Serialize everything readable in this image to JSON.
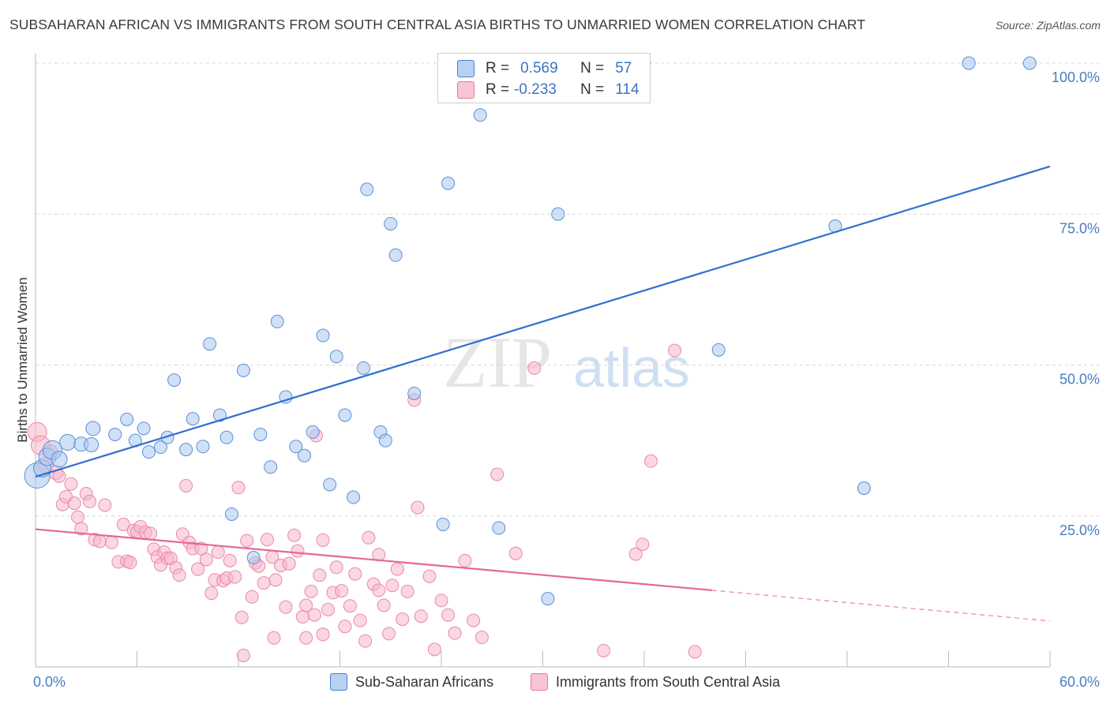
{
  "title": "SUBSAHARAN AFRICAN VS IMMIGRANTS FROM SOUTH CENTRAL ASIA BIRTHS TO UNMARRIED WOMEN CORRELATION CHART",
  "source": "Source: ZipAtlas.com",
  "watermark": {
    "zip": "ZIP",
    "atlas": "atlas"
  },
  "legend": {
    "r_label": "R =",
    "n_label": "N =",
    "series": [
      {
        "r": "0.569",
        "n": "57"
      },
      {
        "r": "-0.233",
        "n": "114"
      }
    ]
  },
  "bottom_legend": [
    "Sub-Saharan Africans",
    "Immigrants from South Central Asia"
  ],
  "colors": {
    "blue_fill": "#a9c8ef",
    "blue_stroke": "#5b8fd6",
    "blue_line": "#2f6fd0",
    "pink_fill": "#f7b6cb",
    "pink_stroke": "#e889a8",
    "pink_line": "#e4679a",
    "tick_text": "#4a7cc7",
    "grid": "#d8d8d8"
  },
  "chart_data": {
    "type": "scatter",
    "xlabel": "",
    "ylabel": "Births to Unmarried Women",
    "xlim": [
      0,
      60
    ],
    "ylim": [
      0,
      100
    ],
    "x_tick_labels": [
      "0.0%",
      "60.0%"
    ],
    "y_tick_labels": [
      "25.0%",
      "50.0%",
      "75.0%",
      "100.0%"
    ],
    "y_ticks": [
      25,
      50,
      75,
      100
    ],
    "grid": "horizontal dashed",
    "series": [
      {
        "name": "Sub-Saharan Africans",
        "trend": {
          "x": [
            0,
            60
          ],
          "y": [
            31.5,
            82.9
          ]
        },
        "points": [
          [
            0.1,
            31.7,
            16
          ],
          [
            0.4,
            32.9,
            11
          ],
          [
            0.7,
            34.8,
            11
          ],
          [
            1.0,
            35.9,
            12
          ],
          [
            1.4,
            34.4,
            10
          ],
          [
            1.9,
            37.2,
            10
          ],
          [
            2.7,
            36.9,
            9
          ],
          [
            3.3,
            36.8,
            9
          ],
          [
            3.4,
            39.5,
            9
          ],
          [
            4.7,
            38.5,
            8
          ],
          [
            5.4,
            41.0,
            8
          ],
          [
            5.9,
            37.5,
            8
          ],
          [
            6.4,
            39.5,
            8
          ],
          [
            6.7,
            35.6,
            8
          ],
          [
            7.4,
            36.4,
            8
          ],
          [
            7.8,
            38.0,
            8
          ],
          [
            8.2,
            47.5,
            8
          ],
          [
            8.9,
            36.0,
            8
          ],
          [
            9.3,
            41.1,
            8
          ],
          [
            9.9,
            36.5,
            8
          ],
          [
            10.3,
            53.5,
            8
          ],
          [
            10.9,
            41.7,
            8
          ],
          [
            11.3,
            38.0,
            8
          ],
          [
            11.6,
            25.3,
            8
          ],
          [
            12.3,
            49.1,
            8
          ],
          [
            12.9,
            18.1,
            8
          ],
          [
            13.3,
            38.5,
            8
          ],
          [
            13.9,
            33.1,
            8
          ],
          [
            14.3,
            57.2,
            8
          ],
          [
            14.8,
            44.7,
            8
          ],
          [
            15.4,
            36.5,
            8
          ],
          [
            15.9,
            35.0,
            8
          ],
          [
            16.4,
            38.9,
            8
          ],
          [
            17.0,
            54.9,
            8
          ],
          [
            17.4,
            30.2,
            8
          ],
          [
            17.8,
            51.4,
            8
          ],
          [
            18.3,
            41.7,
            8
          ],
          [
            18.8,
            28.1,
            8
          ],
          [
            19.4,
            49.5,
            8
          ],
          [
            19.6,
            79.1,
            8
          ],
          [
            20.4,
            38.9,
            8
          ],
          [
            20.7,
            37.5,
            8
          ],
          [
            21.0,
            73.4,
            8
          ],
          [
            21.3,
            68.2,
            8
          ],
          [
            22.4,
            45.3,
            8
          ],
          [
            24.1,
            23.6,
            8
          ],
          [
            24.4,
            80.1,
            8
          ],
          [
            26.3,
            91.4,
            8
          ],
          [
            27.4,
            23.0,
            8
          ],
          [
            30.3,
            11.3,
            8
          ],
          [
            30.9,
            75.0,
            8
          ],
          [
            36.0,
            100.0,
            8
          ],
          [
            40.4,
            52.5,
            8
          ],
          [
            47.3,
            73.0,
            8
          ],
          [
            49.0,
            29.6,
            8
          ],
          [
            55.2,
            100.0,
            8
          ],
          [
            58.8,
            100.0,
            8
          ]
        ]
      },
      {
        "name": "Immigrants from South Central Asia",
        "trend": {
          "x": [
            0,
            40
          ],
          "y": [
            22.8,
            12.7
          ]
        },
        "trend_dashed": {
          "x": [
            40,
            60
          ],
          "y": [
            12.7,
            7.6
          ]
        },
        "points": [
          [
            0.1,
            38.9,
            12
          ],
          [
            0.3,
            36.7,
            12
          ],
          [
            0.6,
            33.5,
            10
          ],
          [
            0.9,
            35.6,
            9
          ],
          [
            1.2,
            32.2,
            9
          ],
          [
            1.4,
            31.6,
            8
          ],
          [
            1.6,
            26.9,
            8
          ],
          [
            1.8,
            28.2,
            8
          ],
          [
            2.1,
            30.3,
            8
          ],
          [
            2.3,
            27.1,
            8
          ],
          [
            2.5,
            24.8,
            8
          ],
          [
            2.7,
            22.9,
            8
          ],
          [
            3.0,
            28.7,
            8
          ],
          [
            3.2,
            27.4,
            8
          ],
          [
            3.5,
            21.1,
            8
          ],
          [
            3.8,
            20.8,
            8
          ],
          [
            4.1,
            26.8,
            8
          ],
          [
            4.5,
            20.6,
            8
          ],
          [
            4.9,
            17.4,
            8
          ],
          [
            5.2,
            23.6,
            8
          ],
          [
            5.4,
            17.5,
            8
          ],
          [
            5.6,
            17.3,
            8
          ],
          [
            5.8,
            22.6,
            8
          ],
          [
            6.0,
            22.4,
            8
          ],
          [
            6.2,
            23.2,
            8
          ],
          [
            6.5,
            22.3,
            8
          ],
          [
            6.8,
            22.1,
            8
          ],
          [
            7.0,
            19.5,
            8
          ],
          [
            7.2,
            18.2,
            8
          ],
          [
            7.4,
            16.9,
            8
          ],
          [
            7.6,
            19.0,
            8
          ],
          [
            7.8,
            18.0,
            8
          ],
          [
            8.0,
            18.0,
            8
          ],
          [
            8.3,
            16.4,
            8
          ],
          [
            8.5,
            15.2,
            8
          ],
          [
            8.7,
            22.0,
            8
          ],
          [
            8.9,
            30.0,
            8
          ],
          [
            9.1,
            20.6,
            8
          ],
          [
            9.3,
            19.6,
            8
          ],
          [
            9.6,
            16.2,
            8
          ],
          [
            9.8,
            19.6,
            8
          ],
          [
            10.1,
            17.8,
            8
          ],
          [
            10.4,
            12.2,
            8
          ],
          [
            10.6,
            14.4,
            8
          ],
          [
            10.8,
            19.0,
            8
          ],
          [
            11.1,
            14.3,
            8
          ],
          [
            11.3,
            14.7,
            8
          ],
          [
            11.5,
            17.6,
            8
          ],
          [
            11.8,
            14.9,
            8
          ],
          [
            12.0,
            29.7,
            8
          ],
          [
            12.2,
            8.2,
            8
          ],
          [
            12.5,
            20.9,
            8
          ],
          [
            12.8,
            11.6,
            8
          ],
          [
            13.0,
            17.2,
            8
          ],
          [
            13.2,
            16.7,
            8
          ],
          [
            13.5,
            13.9,
            8
          ],
          [
            13.7,
            21.1,
            8
          ],
          [
            14.0,
            18.2,
            8
          ],
          [
            14.2,
            14.4,
            8
          ],
          [
            14.5,
            16.8,
            8
          ],
          [
            14.8,
            9.9,
            8
          ],
          [
            15.0,
            17.1,
            8
          ],
          [
            15.3,
            21.8,
            8
          ],
          [
            15.5,
            19.2,
            8
          ],
          [
            15.8,
            8.3,
            8
          ],
          [
            16.0,
            10.2,
            8
          ],
          [
            16.3,
            12.5,
            8
          ],
          [
            16.5,
            8.6,
            8
          ],
          [
            16.8,
            15.2,
            8
          ],
          [
            17.0,
            21.0,
            8
          ],
          [
            17.3,
            9.5,
            8
          ],
          [
            17.6,
            12.3,
            8
          ],
          [
            17.8,
            16.5,
            8
          ],
          [
            18.1,
            12.6,
            8
          ],
          [
            18.3,
            6.7,
            8
          ],
          [
            18.6,
            10.1,
            8
          ],
          [
            18.9,
            15.4,
            8
          ],
          [
            19.2,
            7.7,
            8
          ],
          [
            19.5,
            4.3,
            8
          ],
          [
            19.7,
            21.4,
            8
          ],
          [
            20.0,
            13.7,
            8
          ],
          [
            20.3,
            12.7,
            8
          ],
          [
            20.6,
            10.2,
            8
          ],
          [
            20.9,
            5.5,
            8
          ],
          [
            21.1,
            13.5,
            8
          ],
          [
            21.4,
            16.2,
            8
          ],
          [
            21.7,
            7.9,
            8
          ],
          [
            22.0,
            12.5,
            8
          ],
          [
            22.4,
            44.2,
            8
          ],
          [
            22.8,
            8.4,
            8
          ],
          [
            23.3,
            15.0,
            8
          ],
          [
            23.6,
            2.9,
            8
          ],
          [
            24.0,
            11.0,
            8
          ],
          [
            24.4,
            8.6,
            8
          ],
          [
            24.8,
            5.6,
            8
          ],
          [
            25.4,
            17.6,
            8
          ],
          [
            25.9,
            7.7,
            8
          ],
          [
            26.4,
            4.9,
            8
          ],
          [
            27.3,
            31.9,
            8
          ],
          [
            28.4,
            18.8,
            8
          ],
          [
            29.5,
            49.5,
            8
          ],
          [
            33.6,
            2.7,
            8
          ],
          [
            35.5,
            18.7,
            8
          ],
          [
            35.9,
            20.3,
            8
          ],
          [
            36.4,
            34.1,
            8
          ],
          [
            37.8,
            52.4,
            8
          ],
          [
            39.0,
            2.5,
            8
          ],
          [
            12.3,
            1.9,
            8
          ],
          [
            14.1,
            4.8,
            8
          ],
          [
            16.0,
            4.8,
            8
          ],
          [
            17.0,
            5.4,
            8
          ],
          [
            20.3,
            18.6,
            8
          ],
          [
            22.6,
            26.4,
            8
          ],
          [
            16.6,
            38.3,
            8
          ]
        ]
      }
    ]
  }
}
